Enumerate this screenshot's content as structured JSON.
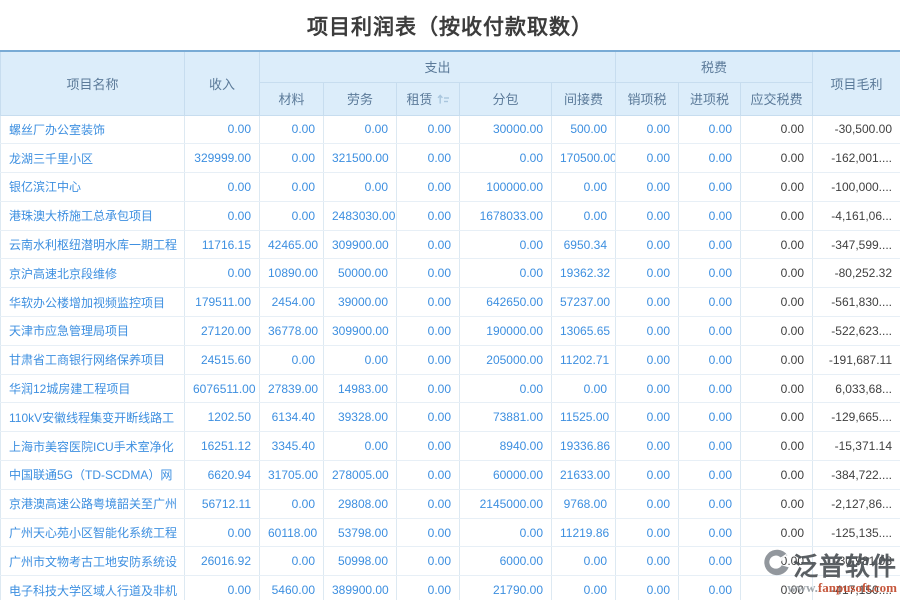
{
  "title": "项目利润表（按收付款取数）",
  "columns": {
    "project": "项目名称",
    "income": "收入",
    "expense_group": "支出",
    "tax_group": "税费",
    "gross": "项目毛利",
    "expense_children": [
      "材料",
      "劳务",
      "租赁",
      "分包",
      "间接费"
    ],
    "tax_children": [
      "销项税",
      "进项税",
      "应交税费"
    ]
  },
  "colors": {
    "header_bg": "#dcedfa",
    "header_text": "#5b7a99",
    "link_blue": "#3d8fe0",
    "dark_text": "#3f3f3f",
    "table_top_border": "#79abd5"
  },
  "rows": [
    {
      "name": "螺丝厂办公室装饰",
      "vals": [
        "0.00",
        "0.00",
        "0.00",
        "0.00",
        "30000.00",
        "500.00",
        "0.00",
        "0.00",
        "0.00",
        "-30,500.00"
      ]
    },
    {
      "name": "龙湖三千里小区",
      "vals": [
        "329999.00",
        "0.00",
        "321500.00",
        "0.00",
        "0.00",
        "170500.00",
        "0.00",
        "0.00",
        "0.00",
        "-162,001...."
      ]
    },
    {
      "name": "银亿滨江中心",
      "vals": [
        "0.00",
        "0.00",
        "0.00",
        "0.00",
        "100000.00",
        "0.00",
        "0.00",
        "0.00",
        "0.00",
        "-100,000...."
      ]
    },
    {
      "name": "港珠澳大桥施工总承包项目",
      "vals": [
        "0.00",
        "0.00",
        "2483030.00",
        "0.00",
        "1678033.00",
        "0.00",
        "0.00",
        "0.00",
        "0.00",
        "-4,161,06..."
      ]
    },
    {
      "name": "云南水利枢纽潜明水库一期工程",
      "vals": [
        "11716.15",
        "42465.00",
        "309900.00",
        "0.00",
        "0.00",
        "6950.34",
        "0.00",
        "0.00",
        "0.00",
        "-347,599...."
      ]
    },
    {
      "name": "京沪高速北京段维修",
      "vals": [
        "0.00",
        "10890.00",
        "50000.00",
        "0.00",
        "0.00",
        "19362.32",
        "0.00",
        "0.00",
        "0.00",
        "-80,252.32"
      ]
    },
    {
      "name": "华软办公楼增加视频监控项目",
      "vals": [
        "179511.00",
        "2454.00",
        "39000.00",
        "0.00",
        "642650.00",
        "57237.00",
        "0.00",
        "0.00",
        "0.00",
        "-561,830...."
      ]
    },
    {
      "name": "天津市应急管理局项目",
      "vals": [
        "27120.00",
        "36778.00",
        "309900.00",
        "0.00",
        "190000.00",
        "13065.65",
        "0.00",
        "0.00",
        "0.00",
        "-522,623...."
      ]
    },
    {
      "name": "甘肃省工商银行网络保养项目",
      "vals": [
        "24515.60",
        "0.00",
        "0.00",
        "0.00",
        "205000.00",
        "11202.71",
        "0.00",
        "0.00",
        "0.00",
        "-191,687.11"
      ]
    },
    {
      "name": "华润12城房建工程项目",
      "vals": [
        "6076511.00",
        "27839.00",
        "14983.00",
        "0.00",
        "0.00",
        "0.00",
        "0.00",
        "0.00",
        "0.00",
        "6,033,68..."
      ]
    },
    {
      "name": "110kV安徽线程集变开断线路工",
      "vals": [
        "1202.50",
        "6134.40",
        "39328.00",
        "0.00",
        "73881.00",
        "11525.00",
        "0.00",
        "0.00",
        "0.00",
        "-129,665...."
      ]
    },
    {
      "name": "上海市美容医院ICU手术室净化",
      "vals": [
        "16251.12",
        "3345.40",
        "0.00",
        "0.00",
        "8940.00",
        "19336.86",
        "0.00",
        "0.00",
        "0.00",
        "-15,371.14"
      ]
    },
    {
      "name": "中国联通5G（TD-SCDMA）网",
      "vals": [
        "6620.94",
        "31705.00",
        "278005.00",
        "0.00",
        "60000.00",
        "21633.00",
        "0.00",
        "0.00",
        "0.00",
        "-384,722...."
      ]
    },
    {
      "name": "京港澳高速公路粤境韶关至广州",
      "vals": [
        "56712.11",
        "0.00",
        "29808.00",
        "0.00",
        "2145000.00",
        "9768.00",
        "0.00",
        "0.00",
        "0.00",
        "-2,127,86..."
      ]
    },
    {
      "name": "广州天心苑小区智能化系统工程",
      "vals": [
        "0.00",
        "60118.00",
        "53798.00",
        "0.00",
        "0.00",
        "11219.86",
        "0.00",
        "0.00",
        "0.00",
        "-125,135...."
      ]
    },
    {
      "name": "广州市文物考古工地安防系统设",
      "vals": [
        "26016.92",
        "0.00",
        "50998.00",
        "0.00",
        "6000.00",
        "0.00",
        "0.00",
        "0.00",
        "0.00",
        "-30,981.08"
      ]
    },
    {
      "name": "电子科技大学区域人行道及非机",
      "vals": [
        "0.00",
        "5460.00",
        "389900.00",
        "0.00",
        "21790.00",
        "0.00",
        "0.00",
        "0.00",
        "0.00",
        "-417,150...."
      ]
    }
  ],
  "watermark": {
    "name": "泛普软件",
    "url_www": "www.",
    "url_domain": "fanpusoft.com"
  }
}
